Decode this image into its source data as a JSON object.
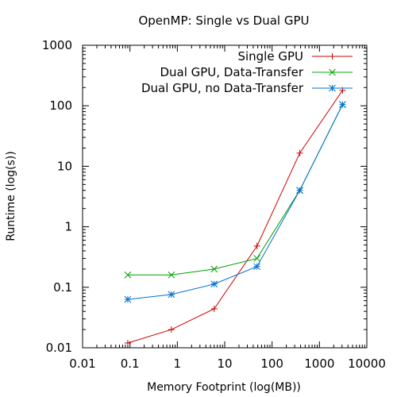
{
  "chart_data": {
    "type": "line",
    "title": "OpenMP: Single vs Dual GPU",
    "xlabel": "Memory Footprint (log(MB))",
    "ylabel": "Runtime (log(s))",
    "xscale": "log",
    "yscale": "log",
    "xlim": [
      0.01,
      10000
    ],
    "ylim": [
      0.01,
      1000
    ],
    "xticks": [
      "0.01",
      "0.1",
      "1",
      "10",
      "100",
      "1000",
      "10000"
    ],
    "yticks": [
      "0.01",
      "0.1",
      "1",
      "10",
      "100",
      "1000"
    ],
    "grid": false,
    "legend_position": "top-right",
    "series": [
      {
        "name": "Single GPU",
        "color": "#cc0000",
        "marker": "plus",
        "x": [
          0.09,
          0.75,
          6,
          48,
          384,
          3072
        ],
        "y": [
          0.012,
          0.02,
          0.044,
          0.48,
          16.5,
          180
        ]
      },
      {
        "name": "Dual GPU, Data-Transfer",
        "color": "#00a000",
        "marker": "cross",
        "x": [
          0.09,
          0.75,
          6,
          48,
          384,
          3072
        ],
        "y": [
          0.16,
          0.16,
          0.2,
          0.3,
          4.0,
          105
        ]
      },
      {
        "name": "Dual GPU, no Data-Transfer",
        "color": "#0070d0",
        "marker": "star",
        "x": [
          0.09,
          0.75,
          6,
          48,
          384,
          3072
        ],
        "y": [
          0.063,
          0.076,
          0.113,
          0.22,
          4.0,
          105
        ]
      }
    ]
  }
}
